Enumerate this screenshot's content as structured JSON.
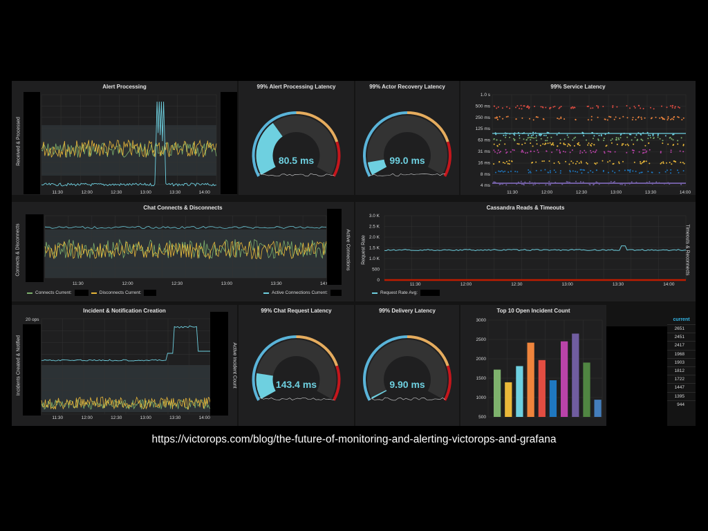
{
  "url": "https://victorops.com/blog/the-future-of-monitoring-and-alerting-victorops-and-grafana",
  "time_ticks_a": [
    "11:30",
    "12:00",
    "12:30",
    "13:00",
    "13:30",
    "14:00"
  ],
  "panels": {
    "alert_processing": {
      "title": "Alert Processing",
      "y_label": "Received & Processed"
    },
    "g_alert_latency": {
      "title": "99% Alert Processing Latency",
      "value": "80.5 ms",
      "fraction": 0.35
    },
    "g_actor_latency": {
      "title": "99% Actor Recovery Latency",
      "value": "99.0 ms",
      "fraction": 0.08
    },
    "service_latency": {
      "title": "99% Service Latency",
      "y_ticks": [
        "1.0 s",
        "500 ms",
        "250 ms",
        "125 ms",
        "63 ms",
        "31 ms",
        "16 ms",
        "8 ms",
        "4 ms"
      ]
    },
    "chat": {
      "title": "Chat Connects & Disconnects",
      "y_label": "Connects & Disconnects",
      "y_label_right": "Active Connections",
      "legend": [
        {
          "label": "Connects  Current:",
          "color": "#7eb26d"
        },
        {
          "label": "Disconnects  Current:",
          "color": "#eab839"
        },
        {
          "label": "Active Connections  Current:",
          "color": "#6ed0e0"
        }
      ]
    },
    "cassandra": {
      "title": "Cassandra Reads & Timeouts",
      "y_label": "Request Rate",
      "y_label_right": "Timeouts & Reconnects",
      "y_ticks": [
        "3.0 K",
        "2.5 K",
        "2.0 K",
        "1.5 K",
        "1.0 K",
        "500",
        "0"
      ],
      "legend": [
        {
          "label": "Request Rate  Avg:",
          "color": "#6ed0e0"
        }
      ]
    },
    "incident": {
      "title": "Incident & Notification Creation",
      "y_label": "Incidents Created & Notified",
      "y_label_right": "Active Incident Count",
      "top_tick": "20 ops"
    },
    "g_chat_latency": {
      "title": "99% Chat Request Latency",
      "value": "143.4 ms",
      "fraction": 0.16
    },
    "g_delivery_latency": {
      "title": "99% Delivery Latency",
      "value": "9.90 ms",
      "fraction": 0.01
    },
    "top10": {
      "title": "Top 10 Open Incident Count",
      "y_ticks": [
        "3000",
        "2500",
        "2000",
        "1500",
        "1000",
        "500"
      ],
      "column_header": "current",
      "values": [
        "2651",
        "2451",
        "2417",
        "1968",
        "1903",
        "1812",
        "1722",
        "1447",
        "1395",
        "944"
      ]
    }
  },
  "chart_data": [
    {
      "type": "bar",
      "title": "Top 10 Open Incident Count",
      "ylim": [
        500,
        3000
      ],
      "values": [
        1722,
        1395,
        1812,
        2417,
        1968,
        1447,
        2451,
        2651,
        1903,
        944
      ],
      "colors": [
        "#7eb26d",
        "#eab839",
        "#6ed0e0",
        "#ef843c",
        "#e24d42",
        "#1f78c1",
        "#ba43a9",
        "#705da0",
        "#508642",
        "#447ebc"
      ]
    },
    {
      "type": "line",
      "title": "Cassandra Reads & Timeouts",
      "ylim": [
        0,
        3000
      ],
      "series": [
        {
          "name": "Request Rate",
          "level": 1400,
          "color": "#6ed0e0"
        },
        {
          "name": "Timeouts",
          "level": 0,
          "color": "#bf1b00"
        }
      ]
    }
  ]
}
